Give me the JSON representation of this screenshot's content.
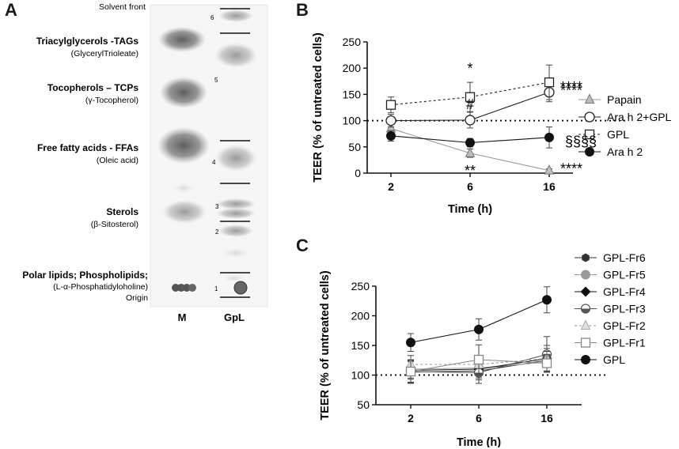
{
  "panel_a": {
    "letter": "A",
    "solvent_front": "Solvent front",
    "origin": "Origin",
    "lane_labels": [
      "M",
      "GpL"
    ],
    "classes": [
      {
        "name": "Triacylglycerols -TAGs",
        "standard": "(GlycerylTrioleate)"
      },
      {
        "name": "Tocopherols – TCPs",
        "standard": "(γ-Tocopherol)"
      },
      {
        "name": "Free fatty acids - FFAs",
        "standard": "(Oleic acid)"
      },
      {
        "name": "Sterols",
        "standard": "(β-Sitosterol)"
      },
      {
        "name": "Polar lipids; Phospholipids;",
        "standard": "(L-α-Phosphatidyloholine)"
      }
    ],
    "fraction_numbers": [
      "6",
      "5",
      "4",
      "3",
      "2",
      "1"
    ]
  },
  "chart_data": [
    {
      "panel": "B",
      "type": "line",
      "categories": [
        "2",
        "6",
        "16"
      ],
      "xlabel": "Time (h)",
      "ylabel": "TEER (% of untreated cells)",
      "ylim": [
        0,
        250
      ],
      "yticks": [
        "0",
        "50",
        "100",
        "150",
        "200",
        "250"
      ],
      "reference_line": 100,
      "series": [
        {
          "name": "Papain",
          "marker": "triangle",
          "color": "#9a9a9a",
          "dash": "solid",
          "values": [
            85,
            38,
            5
          ],
          "errors": [
            8,
            8,
            3
          ],
          "labels": [
            "",
            "**",
            "****"
          ]
        },
        {
          "name": "Ara h 2+GPL",
          "marker": "open-circle",
          "color": "#222222",
          "dash": "solid",
          "values": [
            100,
            101,
            154
          ],
          "errors": [
            12,
            15,
            18
          ],
          "labels": [
            "",
            "#",
            "****"
          ]
        },
        {
          "name": "GPL",
          "marker": "open-square",
          "color": "#222222",
          "dash": "dotted",
          "values": [
            130,
            145,
            173
          ],
          "errors": [
            15,
            28,
            33
          ],
          "labels": [
            "",
            "*",
            "****"
          ]
        },
        {
          "name": "Ara h 2",
          "marker": "filled-circle",
          "color": "#111111",
          "dash": "solid",
          "values": [
            71,
            58,
            68
          ],
          "errors": [
            10,
            8,
            20
          ],
          "labels": [
            "",
            "",
            "§§§§"
          ]
        }
      ]
    },
    {
      "panel": "C",
      "type": "line",
      "categories": [
        "2",
        "6",
        "16"
      ],
      "xlabel": "Time (h)",
      "ylabel": "TEER (% of untreated cells)",
      "ylim": [
        50,
        250
      ],
      "yticks": [
        "50",
        "100",
        "150",
        "200",
        "250"
      ],
      "reference_line": 100,
      "series": [
        {
          "name": "GPL-Fr6",
          "marker": "filled-hexagon",
          "color": "#333333",
          "dash": "solid",
          "values": [
            105,
            107,
            125
          ],
          "errors": [
            18,
            15,
            20
          ]
        },
        {
          "name": "GPL-Fr5",
          "marker": "filled-circle",
          "color": "#9a9a9a",
          "dash": "solid",
          "values": [
            110,
            112,
            122
          ],
          "errors": [
            15,
            12,
            15
          ]
        },
        {
          "name": "GPL-Fr4",
          "marker": "filled-diamond",
          "color": "#111111",
          "dash": "solid",
          "values": [
            108,
            110,
            128
          ],
          "errors": [
            15,
            15,
            22
          ]
        },
        {
          "name": "GPL-Fr3",
          "marker": "half-circle",
          "color": "#555555",
          "dash": "solid",
          "values": [
            106,
            104,
            135
          ],
          "errors": [
            18,
            18,
            30
          ]
        },
        {
          "name": "GPL-Fr2",
          "marker": "open-triangle",
          "color": "#b0b0b0",
          "dash": "dotted",
          "values": [
            118,
            118,
            128
          ],
          "errors": [
            15,
            15,
            12
          ]
        },
        {
          "name": "GPL-Fr1",
          "marker": "open-square",
          "color": "#888888",
          "dash": "solid",
          "values": [
            106,
            126,
            120
          ],
          "errors": [
            20,
            25,
            15
          ]
        },
        {
          "name": "GPL",
          "marker": "filled-circle",
          "color": "#111111",
          "dash": "solid",
          "values": [
            155,
            177,
            227
          ],
          "errors": [
            15,
            18,
            22
          ]
        }
      ]
    }
  ]
}
